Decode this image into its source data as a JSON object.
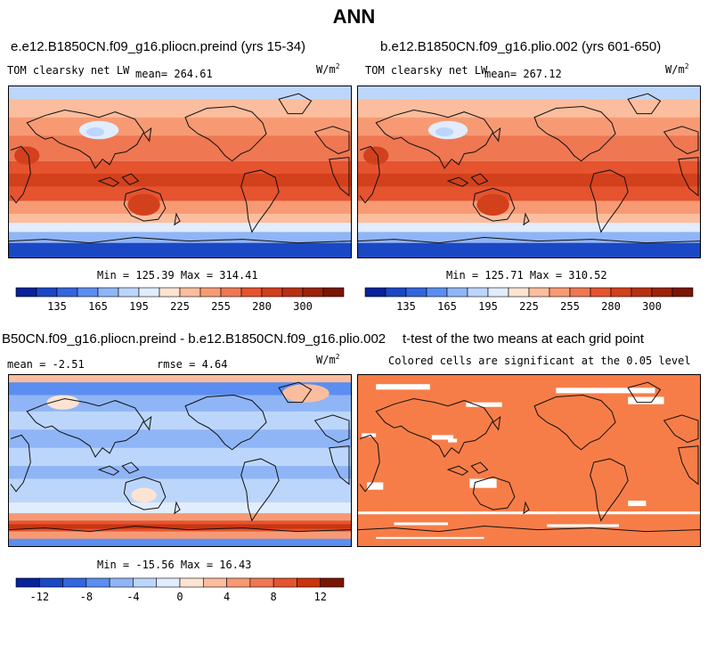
{
  "title": "ANN",
  "panels": [
    {
      "id": "case",
      "title": "e.e12.B1850CN.f09_g16.pliocn.preind (yrs 15-34)",
      "variable": "TOM clearsky net LW",
      "mean_label": "mean= 264.61",
      "units": "W/m",
      "units_sup": "2",
      "minmax": "Min = 125.39 Max = 314.41"
    },
    {
      "id": "control",
      "title": "b.e12.B1850CN.f09_g16.plio.002 (yrs 601-650)",
      "variable": "TOM clearsky net LW",
      "mean_label": "mean= 267.12",
      "units": "W/m",
      "units_sup": "2",
      "minmax": "Min = 125.71 Max = 310.52"
    },
    {
      "id": "difference",
      "title": "B50CN.f09_g16.pliocn.preind - b.e12.B1850CN.f09_g16.plio.002",
      "mean_label": "mean =  -2.51",
      "rmse_label": "rmse =   4.64",
      "units": "W/m",
      "units_sup": "2",
      "minmax": "Min = -15.56 Max =  16.43"
    },
    {
      "id": "ttest",
      "title": "t-test of the two means at each grid point",
      "subtitle": "Colored cells are significant at the 0.05 level"
    }
  ],
  "colors": {
    "abs_scale": [
      "#08229a",
      "#1a47c4",
      "#3366dd",
      "#5b8ef0",
      "#8fb5f7",
      "#bcd6fb",
      "#e1ecfd",
      "#fde3d3",
      "#fbbd9d",
      "#f79a74",
      "#ef7752",
      "#e5532f",
      "#d3401c",
      "#b83012",
      "#9b2309",
      "#7a1503"
    ],
    "diff_scale": [
      "#08229a",
      "#1a47c4",
      "#3366dd",
      "#5b8ef0",
      "#8fb5f7",
      "#bcd6fb",
      "#e1ecfd",
      "#fde3d3",
      "#fbbd9d",
      "#f79a74",
      "#ef7752",
      "#e5532f",
      "#c8350f",
      "#7a1503"
    ],
    "ttest_fill": "#f77d48"
  },
  "chart_data": [
    {
      "type": "heatmap",
      "title": "e.e12.B1850CN.f09_g16.pliocn.preind (yrs 15-34)",
      "variable": "TOM clearsky net LW",
      "units": "W/m2",
      "mean": 264.61,
      "min": 125.39,
      "max": 314.41,
      "colorbar_ticks": [
        135,
        165,
        195,
        225,
        255,
        280,
        300
      ],
      "colorbar_levels": [
        120,
        135,
        150,
        165,
        180,
        195,
        210,
        225,
        240,
        255,
        270,
        280,
        290,
        300,
        310,
        320,
        330
      ]
    },
    {
      "type": "heatmap",
      "title": "b.e12.B1850CN.f09_g16.plio.002 (yrs 601-650)",
      "variable": "TOM clearsky net LW",
      "units": "W/m2",
      "mean": 267.12,
      "min": 125.71,
      "max": 310.52,
      "colorbar_ticks": [
        135,
        165,
        195,
        225,
        255,
        280,
        300
      ],
      "colorbar_levels": [
        120,
        135,
        150,
        165,
        180,
        195,
        210,
        225,
        240,
        255,
        270,
        280,
        290,
        300,
        310,
        320,
        330
      ]
    },
    {
      "type": "heatmap",
      "title": "B50CN.f09_g16.pliocn.preind - b.e12.B1850CN.f09_g16.plio.002",
      "units": "W/m2",
      "mean": -2.51,
      "rmse": 4.64,
      "min": -15.56,
      "max": 16.43,
      "colorbar_ticks": [
        -12,
        -8,
        -4,
        0,
        4,
        8,
        12
      ],
      "colorbar_levels": [
        -14,
        -12,
        -10,
        -8,
        -6,
        -4,
        -2,
        0,
        2,
        4,
        6,
        8,
        10,
        12,
        14
      ]
    },
    {
      "type": "heatmap",
      "title": "t-test of the two means at each grid point",
      "subtitle": "Colored cells are significant at the 0.05 level"
    }
  ],
  "colorbar_abs": {
    "ticks": [
      "135",
      "165",
      "195",
      "225",
      "255",
      "280",
      "300"
    ]
  },
  "colorbar_diff": {
    "ticks": [
      "-12",
      "-8",
      "-4",
      "0",
      "4",
      "8",
      "12"
    ]
  }
}
